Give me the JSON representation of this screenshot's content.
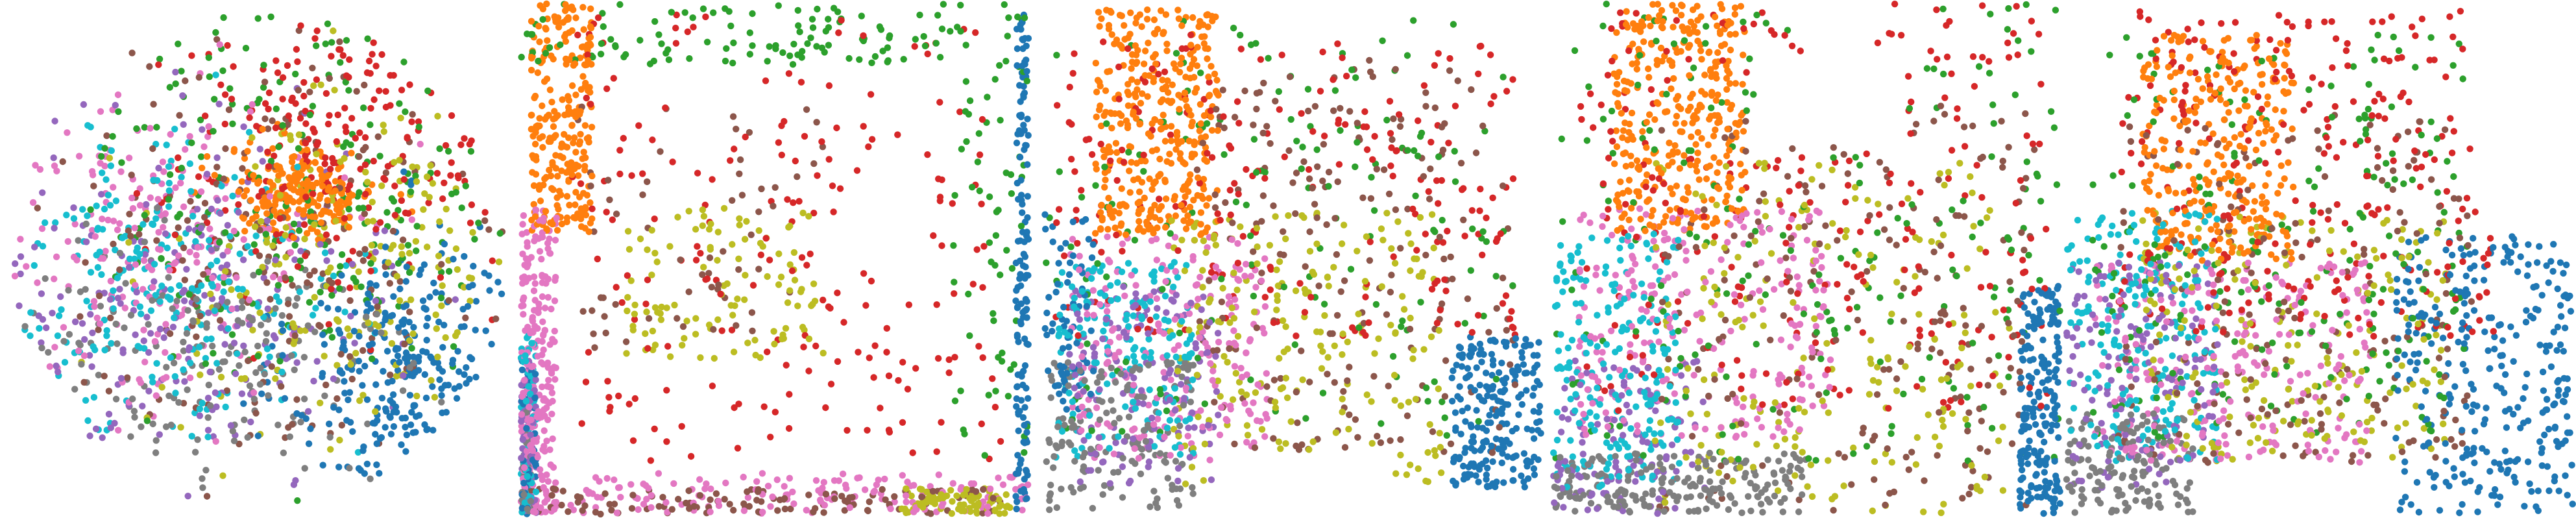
{
  "figure": {},
  "chart_data": [
    {
      "type": "scatter",
      "title": "",
      "xlabel": "",
      "ylabel": "",
      "grid": false,
      "legend": "none",
      "shape": "disk",
      "xlim": [
        -1,
        1
      ],
      "ylim": [
        -1,
        1
      ],
      "point_radius": 5.2,
      "clusters": [
        {
          "color": "#1f77b4",
          "n": 260,
          "cx": 0.62,
          "cy": -0.45,
          "sx": 0.24,
          "sy": 0.3,
          "shape": "gauss"
        },
        {
          "color": "#ff7f0e",
          "n": 220,
          "cx": 0.18,
          "cy": 0.28,
          "sx": 0.15,
          "sy": 0.09,
          "shape": "gauss"
        },
        {
          "color": "#2ca02c",
          "n": 210,
          "cx": 0.25,
          "cy": 0.35,
          "sx": 0.45,
          "sy": 0.4,
          "shape": "gauss"
        },
        {
          "color": "#d62728",
          "n": 210,
          "cx": 0.32,
          "cy": 0.45,
          "sx": 0.35,
          "sy": 0.3,
          "shape": "gauss"
        },
        {
          "color": "#9467bd",
          "n": 210,
          "cx": -0.25,
          "cy": -0.15,
          "sx": 0.4,
          "sy": 0.35,
          "shape": "gauss"
        },
        {
          "color": "#8c564b",
          "n": 200,
          "cx": 0.1,
          "cy": 0.0,
          "sx": 0.5,
          "sy": 0.45,
          "shape": "gauss"
        },
        {
          "color": "#e377c2",
          "n": 200,
          "cx": -0.45,
          "cy": 0.05,
          "sx": 0.35,
          "sy": 0.3,
          "shape": "gauss"
        },
        {
          "color": "#7f7f7f",
          "n": 180,
          "cx": -0.2,
          "cy": -0.4,
          "sx": 0.4,
          "sy": 0.3,
          "shape": "gauss"
        },
        {
          "color": "#bcbd22",
          "n": 190,
          "cx": 0.35,
          "cy": -0.05,
          "sx": 0.35,
          "sy": 0.35,
          "shape": "gauss"
        },
        {
          "color": "#17becf",
          "n": 230,
          "cx": -0.35,
          "cy": -0.1,
          "sx": 0.35,
          "sy": 0.3,
          "shape": "gauss"
        }
      ]
    },
    {
      "type": "scatter",
      "title": "",
      "xlabel": "",
      "ylabel": "",
      "grid": false,
      "legend": "none",
      "shape": "square",
      "xlim": [
        0,
        1
      ],
      "ylim": [
        0,
        1
      ],
      "point_radius": 5.2,
      "clusters": [
        {
          "color": "#1f77b4",
          "n": 140,
          "x": [
            0.975,
            1.0
          ],
          "y": [
            0.0,
            1.0
          ],
          "shape": "uniform"
        },
        {
          "color": "#1f77b4",
          "n": 50,
          "x": [
            0.0,
            0.03
          ],
          "y": [
            0.0,
            0.3
          ],
          "shape": "uniform"
        },
        {
          "color": "#ff7f0e",
          "n": 260,
          "x": [
            0.02,
            0.14
          ],
          "y": [
            0.55,
            1.0
          ],
          "shape": "uniform"
        },
        {
          "color": "#d62728",
          "n": 200,
          "x": [
            0.1,
            0.95
          ],
          "y": [
            0.1,
            0.98
          ],
          "shape": "uniform"
        },
        {
          "color": "#2ca02c",
          "n": 120,
          "x": [
            0.0,
            1.0
          ],
          "y": [
            0.88,
            1.0
          ],
          "shape": "uniform"
        },
        {
          "color": "#2ca02c",
          "n": 60,
          "x": [
            0.85,
            1.0
          ],
          "y": [
            0.1,
            0.9
          ],
          "shape": "uniform"
        },
        {
          "color": "#e377c2",
          "n": 220,
          "x": [
            0.0,
            0.07
          ],
          "y": [
            0.0,
            0.6
          ],
          "shape": "uniform"
        },
        {
          "color": "#e377c2",
          "n": 160,
          "x": [
            0.0,
            1.0
          ],
          "y": [
            0.0,
            0.08
          ],
          "shape": "uniform"
        },
        {
          "color": "#8c564b",
          "n": 120,
          "x": [
            0.0,
            1.0
          ],
          "y": [
            0.0,
            0.05
          ],
          "shape": "uniform"
        },
        {
          "color": "#8c564b",
          "n": 60,
          "x": [
            0.1,
            0.6
          ],
          "y": [
            0.3,
            0.8
          ],
          "shape": "uniform"
        },
        {
          "color": "#bcbd22",
          "n": 110,
          "x": [
            0.2,
            0.6
          ],
          "y": [
            0.3,
            0.6
          ],
          "shape": "uniform"
        },
        {
          "color": "#bcbd22",
          "n": 80,
          "x": [
            0.75,
            0.98
          ],
          "y": [
            0.0,
            0.05
          ],
          "shape": "uniform"
        },
        {
          "color": "#9467bd",
          "n": 60,
          "x": [
            0.0,
            0.03
          ],
          "y": [
            0.0,
            0.3
          ],
          "shape": "uniform"
        },
        {
          "color": "#7f7f7f",
          "n": 40,
          "x": [
            0.0,
            0.02
          ],
          "y": [
            0.0,
            0.2
          ],
          "shape": "uniform"
        },
        {
          "color": "#17becf",
          "n": 70,
          "x": [
            0.0,
            0.03
          ],
          "y": [
            0.0,
            0.35
          ],
          "shape": "uniform"
        }
      ]
    },
    {
      "type": "scatter",
      "title": "",
      "xlabel": "",
      "ylabel": "",
      "grid": false,
      "legend": "none",
      "shape": "notched",
      "xlim": [
        0,
        1
      ],
      "ylim": [
        0,
        1
      ],
      "point_radius": 5.2,
      "clusters": [
        {
          "color": "#ff7f0e",
          "n": 360,
          "x": [
            0.1,
            0.35
          ],
          "y": [
            0.55,
            1.0
          ],
          "shape": "uniform"
        },
        {
          "color": "#d62728",
          "n": 220,
          "x": [
            0.02,
            0.95
          ],
          "y": [
            0.35,
            0.95
          ],
          "shape": "uniform"
        },
        {
          "color": "#2ca02c",
          "n": 160,
          "x": [
            0.0,
            0.95
          ],
          "y": [
            0.15,
            0.98
          ],
          "shape": "uniform"
        },
        {
          "color": "#1f77b4",
          "n": 220,
          "x": [
            0.82,
            1.0
          ],
          "y": [
            0.05,
            0.35
          ],
          "shape": "uniform"
        },
        {
          "color": "#1f77b4",
          "n": 70,
          "x": [
            0.0,
            0.1
          ],
          "y": [
            0.2,
            0.6
          ],
          "shape": "uniform"
        },
        {
          "color": "#e377c2",
          "n": 220,
          "x": [
            0.05,
            0.45
          ],
          "y": [
            0.1,
            0.55
          ],
          "shape": "uniform"
        },
        {
          "color": "#9467bd",
          "n": 140,
          "x": [
            0.05,
            0.35
          ],
          "y": [
            0.05,
            0.45
          ],
          "shape": "uniform"
        },
        {
          "color": "#17becf",
          "n": 170,
          "x": [
            0.02,
            0.3
          ],
          "y": [
            0.1,
            0.5
          ],
          "shape": "uniform"
        },
        {
          "color": "#7f7f7f",
          "n": 160,
          "x": [
            0.0,
            0.3
          ],
          "y": [
            0.0,
            0.3
          ],
          "shape": "uniform"
        },
        {
          "color": "#8c564b",
          "n": 200,
          "x": [
            0.3,
            0.95
          ],
          "y": [
            0.1,
            0.9
          ],
          "shape": "uniform"
        },
        {
          "color": "#bcbd22",
          "n": 200,
          "x": [
            0.25,
            0.8
          ],
          "y": [
            0.05,
            0.6
          ],
          "shape": "uniform"
        }
      ]
    },
    {
      "type": "scatter",
      "title": "",
      "xlabel": "",
      "ylabel": "",
      "grid": false,
      "legend": "none",
      "shape": "rounded-rect",
      "xlim": [
        0,
        1
      ],
      "ylim": [
        0,
        1
      ],
      "point_radius": 5.2,
      "clusters": [
        {
          "color": "#1f77b4",
          "n": 200,
          "x": [
            0.92,
            1.0
          ],
          "y": [
            0.0,
            0.45
          ],
          "shape": "uniform"
        },
        {
          "color": "#ff7f0e",
          "n": 340,
          "x": [
            0.12,
            0.38
          ],
          "y": [
            0.55,
            1.0
          ],
          "shape": "uniform"
        },
        {
          "color": "#d62728",
          "n": 240,
          "x": [
            0.05,
            0.98
          ],
          "y": [
            0.2,
            1.0
          ],
          "shape": "uniform"
        },
        {
          "color": "#2ca02c",
          "n": 200,
          "x": [
            0.0,
            1.0
          ],
          "y": [
            0.1,
            1.0
          ],
          "shape": "uniform"
        },
        {
          "color": "#e377c2",
          "n": 240,
          "x": [
            0.05,
            0.55
          ],
          "y": [
            0.15,
            0.6
          ],
          "shape": "uniform"
        },
        {
          "color": "#9467bd",
          "n": 120,
          "x": [
            0.0,
            0.3
          ],
          "y": [
            0.0,
            0.3
          ],
          "shape": "uniform"
        },
        {
          "color": "#17becf",
          "n": 200,
          "x": [
            0.0,
            0.25
          ],
          "y": [
            0.05,
            0.55
          ],
          "shape": "uniform"
        },
        {
          "color": "#7f7f7f",
          "n": 200,
          "x": [
            0.0,
            0.5
          ],
          "y": [
            0.0,
            0.12
          ],
          "shape": "uniform"
        },
        {
          "color": "#8c564b",
          "n": 200,
          "x": [
            0.2,
            0.95
          ],
          "y": [
            0.0,
            0.8
          ],
          "shape": "uniform"
        },
        {
          "color": "#bcbd22",
          "n": 200,
          "x": [
            0.2,
            0.9
          ],
          "y": [
            0.0,
            0.7
          ],
          "shape": "uniform"
        }
      ]
    },
    {
      "type": "scatter",
      "title": "",
      "xlabel": "",
      "ylabel": "",
      "grid": false,
      "legend": "none",
      "shape": "ramp",
      "xlim": [
        0,
        1
      ],
      "ylim": [
        0,
        1
      ],
      "point_radius": 5.2,
      "clusters": [
        {
          "color": "#1f77b4",
          "n": 300,
          "x": [
            0.65,
            1.0
          ],
          "y": [
            0.0,
            0.55
          ],
          "shape": "uniform"
        },
        {
          "color": "#ff7f0e",
          "n": 300,
          "x": [
            0.15,
            0.45
          ],
          "y": [
            0.5,
            0.95
          ],
          "shape": "uniform"
        },
        {
          "color": "#d62728",
          "n": 260,
          "x": [
            0.1,
            0.85
          ],
          "y": [
            0.35,
            1.0
          ],
          "shape": "uniform"
        },
        {
          "color": "#2ca02c",
          "n": 220,
          "x": [
            0.05,
            0.8
          ],
          "y": [
            0.15,
            0.95
          ],
          "shape": "uniform"
        },
        {
          "color": "#e377c2",
          "n": 240,
          "x": [
            0.05,
            0.6
          ],
          "y": [
            0.1,
            0.5
          ],
          "shape": "uniform"
        },
        {
          "color": "#9467bd",
          "n": 160,
          "x": [
            0.0,
            0.3
          ],
          "y": [
            0.05,
            0.5
          ],
          "shape": "uniform"
        },
        {
          "color": "#17becf",
          "n": 200,
          "x": [
            0.0,
            0.3
          ],
          "y": [
            0.1,
            0.6
          ],
          "shape": "uniform"
        },
        {
          "color": "#7f7f7f",
          "n": 140,
          "x": [
            0.0,
            0.25
          ],
          "y": [
            0.0,
            0.2
          ],
          "shape": "uniform"
        },
        {
          "color": "#8c564b",
          "n": 200,
          "x": [
            0.1,
            0.8
          ],
          "y": [
            0.1,
            0.8
          ],
          "shape": "uniform"
        },
        {
          "color": "#bcbd22",
          "n": 200,
          "x": [
            0.15,
            0.75
          ],
          "y": [
            0.1,
            0.6
          ],
          "shape": "uniform"
        }
      ]
    }
  ]
}
